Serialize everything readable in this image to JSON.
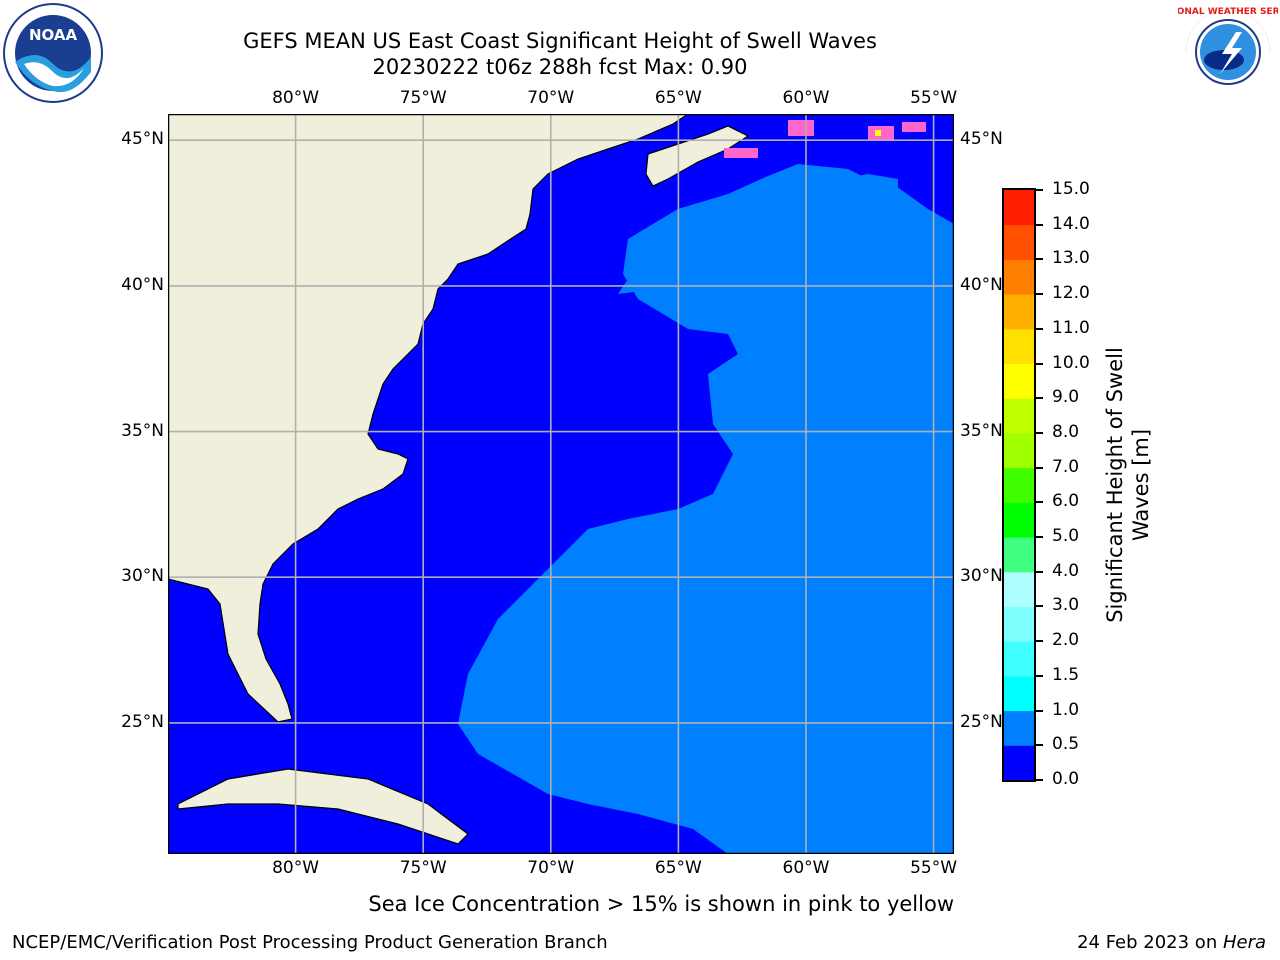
{
  "title": {
    "line1": "GEFS MEAN US East Coast Significant Height of Swell Waves",
    "line2": "20230222 t06z 288h fcst   Max: 0.90"
  },
  "map": {
    "extent": {
      "lon_min": -85,
      "lon_max": -54.2,
      "lat_min": 20.5,
      "lat_max": 45.9
    },
    "lon_ticks": [
      {
        "lon": -80,
        "label": "80°W"
      },
      {
        "lon": -75,
        "label": "75°W"
      },
      {
        "lon": -70,
        "label": "70°W"
      },
      {
        "lon": -65,
        "label": "65°W"
      },
      {
        "lon": -60,
        "label": "60°W"
      },
      {
        "lon": -55,
        "label": "55°W"
      }
    ],
    "lat_ticks": [
      {
        "lat": 45,
        "label": "45°N"
      },
      {
        "lat": 40,
        "label": "40°N"
      },
      {
        "lat": 35,
        "label": "35°N"
      },
      {
        "lat": 30,
        "label": "30°N"
      },
      {
        "lat": 25,
        "label": "25°N"
      }
    ],
    "colors": {
      "band_0_0.5": "#0000ff",
      "band_0.5_1": "#0080ff",
      "land": "#efefdc",
      "sea_ice_pink": "#ff66cc",
      "sea_ice_yellow": "#ffff00",
      "grid": "#b0b0b0"
    }
  },
  "colorbar": {
    "label_line1": "Significant Height of Swell",
    "label_line2": "Waves [m]",
    "ticks": [
      "0.0",
      "0.5",
      "1.0",
      "1.5",
      "2.0",
      "3.0",
      "4.0",
      "5.0",
      "6.0",
      "7.0",
      "8.0",
      "9.0",
      "10.0",
      "11.0",
      "12.0",
      "13.0",
      "14.0",
      "15.0"
    ],
    "colors": [
      "#0000ff",
      "#0080ff",
      "#00ffff",
      "#40ffff",
      "#80ffff",
      "#b0ffff",
      "#40ff80",
      "#00ff00",
      "#40ff00",
      "#a0ff00",
      "#c0ff00",
      "#ffff00",
      "#ffe000",
      "#ffb000",
      "#ff8000",
      "#ff5000",
      "#ff2000"
    ]
  },
  "note": "Sea Ice Concentration > 15% is shown in pink to yellow",
  "footer": {
    "left": "NCEP/EMC/Verification Post Processing Product Generation Branch",
    "right_prefix": "24 Feb 2023 on ",
    "right_host": "Hera"
  },
  "logos": {
    "noaa_text": "NOAA",
    "nws_text": "NATIONAL WEATHER SERVICE"
  }
}
